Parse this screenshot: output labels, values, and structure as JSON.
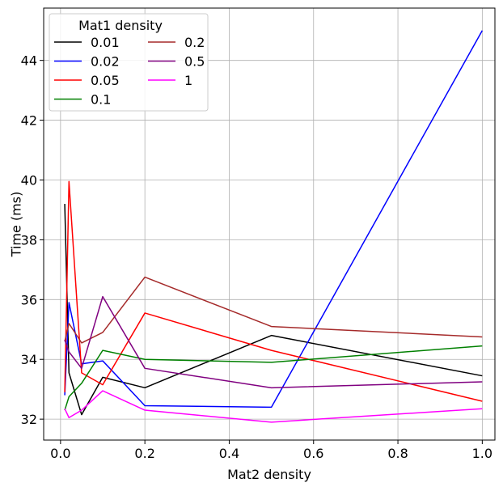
{
  "chart_data": {
    "type": "line",
    "xlabel": "Mat2 density",
    "ylabel": "Time (ms)",
    "xlim": [
      -0.04,
      1.03
    ],
    "ylim": [
      31.3,
      45.75
    ],
    "xticks": [
      0.0,
      0.2,
      0.4,
      0.6,
      0.8,
      1.0
    ],
    "xtick_labels": [
      "0.0",
      "0.2",
      "0.4",
      "0.6",
      "0.8",
      "1.0"
    ],
    "yticks": [
      32,
      34,
      36,
      38,
      40,
      42,
      44
    ],
    "ytick_labels": [
      "32",
      "34",
      "36",
      "38",
      "40",
      "42",
      "44"
    ],
    "grid": true,
    "legend": {
      "title": "Mat1 density",
      "placement": "top-left",
      "columns": 2
    },
    "x": [
      0.01,
      0.02,
      0.05,
      0.1,
      0.2,
      0.5,
      1.0
    ],
    "series": [
      {
        "name": "0.01",
        "color": "#000000",
        "values": [
          39.2,
          33.55,
          32.15,
          33.4,
          33.05,
          34.8,
          33.45
        ]
      },
      {
        "name": "0.02",
        "color": "#0000ff",
        "values": [
          32.8,
          35.9,
          33.85,
          33.95,
          32.45,
          32.4,
          45.0
        ]
      },
      {
        "name": "0.05",
        "color": "#ff0000",
        "values": [
          32.9,
          39.95,
          33.55,
          33.15,
          35.55,
          34.3,
          32.6
        ]
      },
      {
        "name": "0.1",
        "color": "#008000",
        "values": [
          32.3,
          32.75,
          33.2,
          34.3,
          34.0,
          33.9,
          34.45
        ]
      },
      {
        "name": "0.2",
        "color": "#a52a2a",
        "values": [
          34.6,
          35.2,
          34.55,
          34.9,
          36.75,
          35.1,
          34.75
        ]
      },
      {
        "name": "0.5",
        "color": "#800080",
        "values": [
          34.65,
          34.25,
          33.7,
          36.1,
          33.7,
          33.05,
          33.25
        ]
      },
      {
        "name": "1",
        "color": "#ff00ff",
        "values": [
          32.35,
          32.05,
          32.3,
          32.95,
          32.3,
          31.9,
          32.35
        ]
      }
    ]
  }
}
